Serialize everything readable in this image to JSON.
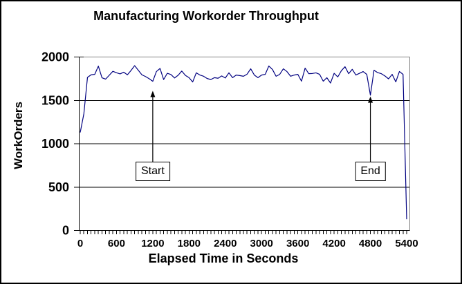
{
  "window": {
    "background_color": "#ffffff",
    "frame_border_color": "#000000"
  },
  "chart_data": {
    "type": "line",
    "title": "Manufacturing Workorder Throughput",
    "xlabel": "Elapsed Time in Seconds",
    "ylabel": "WorkOrders",
    "xlim": [
      0,
      5400
    ],
    "ylim": [
      0,
      2000
    ],
    "x_ticks": [
      0,
      600,
      1200,
      1800,
      2400,
      3000,
      3600,
      4200,
      4800,
      5400
    ],
    "y_ticks": [
      0,
      500,
      1000,
      1500,
      2000
    ],
    "minor_tick_interval": 60,
    "grid": "horizontal",
    "legend": "none",
    "plot_border_color": "#808080",
    "axis_color": "#000000",
    "gridline_color": "#000000",
    "series": [
      {
        "name": "WorkOrders",
        "color": "#000080",
        "x_start": 0,
        "x_interval": 60,
        "values": [
          1130,
          1345,
          1765,
          1795,
          1800,
          1895,
          1760,
          1745,
          1790,
          1835,
          1818,
          1805,
          1825,
          1795,
          1845,
          1900,
          1848,
          1795,
          1775,
          1750,
          1720,
          1832,
          1868,
          1740,
          1812,
          1798,
          1758,
          1790,
          1838,
          1788,
          1762,
          1712,
          1818,
          1792,
          1778,
          1752,
          1740,
          1762,
          1755,
          1782,
          1758,
          1818,
          1762,
          1792,
          1786,
          1778,
          1802,
          1864,
          1792,
          1762,
          1792,
          1800,
          1896,
          1856,
          1778,
          1800,
          1864,
          1832,
          1778,
          1792,
          1800,
          1721,
          1872,
          1808,
          1810,
          1817,
          1800,
          1721,
          1761,
          1700,
          1812,
          1770,
          1842,
          1888,
          1808,
          1858,
          1792,
          1812,
          1832,
          1800,
          1560,
          1848,
          1820,
          1808,
          1782,
          1748,
          1800,
          1713,
          1833,
          1800,
          130
        ]
      }
    ],
    "annotations": [
      {
        "label": "Start",
        "time": 1200,
        "points_to_value": 1610
      },
      {
        "label": "End",
        "time": 4800,
        "points_to_value": 1545
      }
    ]
  }
}
